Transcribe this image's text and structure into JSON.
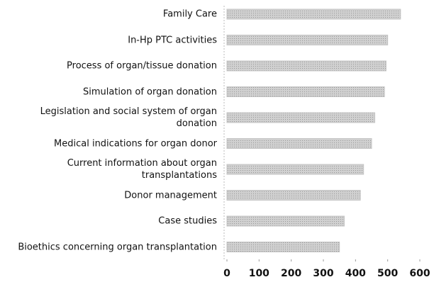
{
  "chart_data": {
    "type": "bar",
    "orientation": "horizontal",
    "categories": [
      "Family Care",
      "In-Hp PTC activities",
      "Process of organ/tissue donation",
      "Simulation of organ donation",
      "Legislation and social system of organ donation",
      "Medical indications for organ donor",
      "Current information about organ transplantations",
      "Donor management",
      "Case studies",
      "Bioethics concerning organ transplantation"
    ],
    "values": [
      540,
      500,
      495,
      490,
      460,
      450,
      425,
      415,
      365,
      350
    ],
    "color": "#c4c4c4",
    "xlim": [
      0,
      600
    ],
    "xticks": [
      0,
      100,
      200,
      300,
      400,
      500,
      600
    ]
  }
}
